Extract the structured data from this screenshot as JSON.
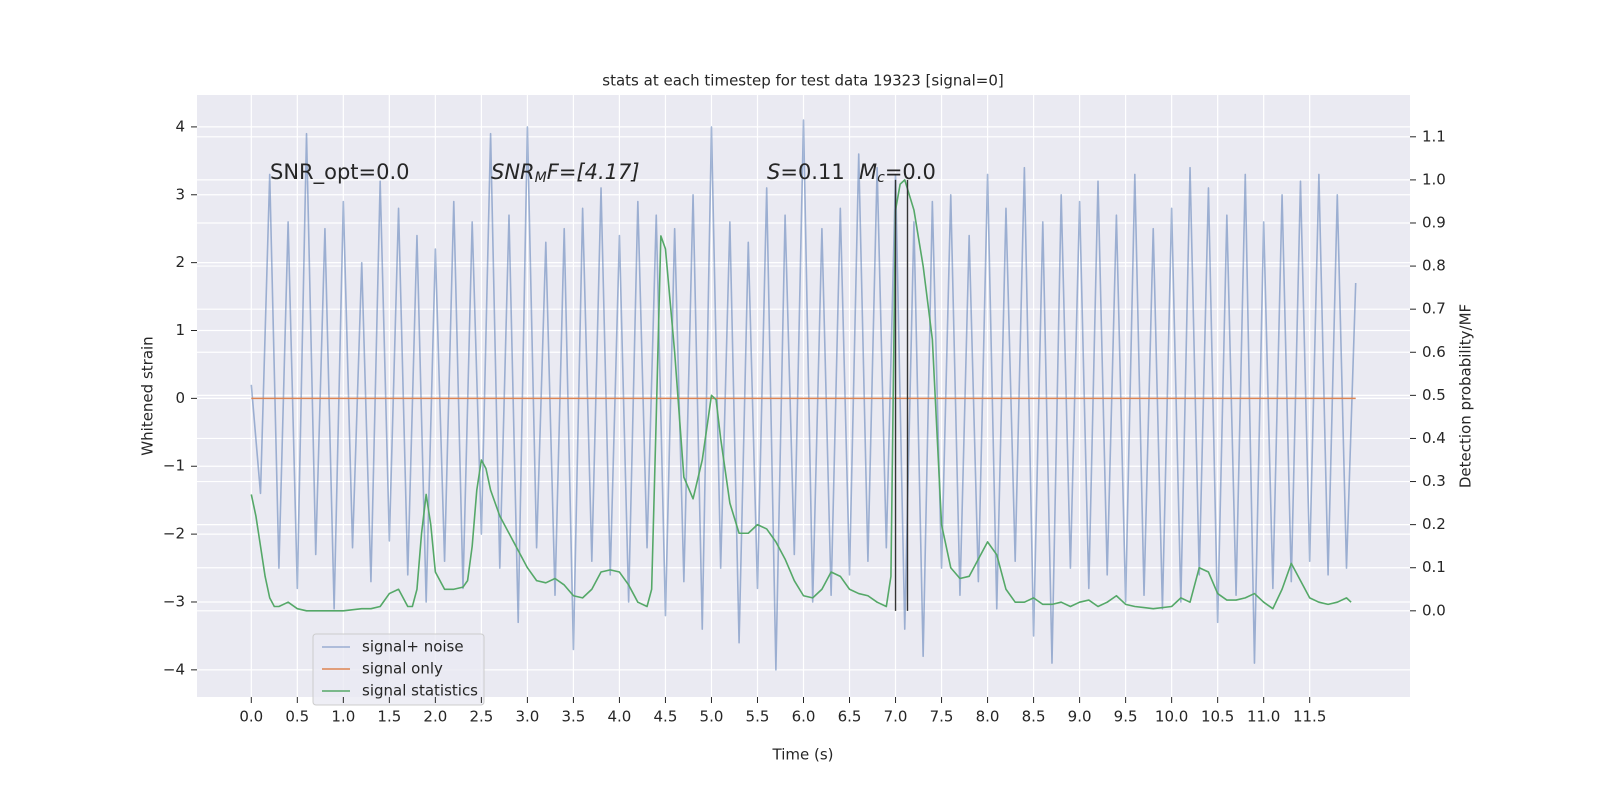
{
  "chart_data": {
    "type": "line",
    "title": "stats at each timestep for test data 19323 [signal=0]",
    "x_label": "Time (s)",
    "y_label": "Whitened strain",
    "y2_label": "Detection probability/MF",
    "annotations": [
      [
        "SNR_opt=0.0"
      ],
      [
        "SNR",
        "M",
        "F=[4.17]"
      ],
      [
        "S",
        "=0.11"
      ],
      [
        "M",
        "c",
        "=0.0"
      ]
    ],
    "xlim": [
      -0.59,
      12.59
    ],
    "xticks": [
      {
        "value": 0,
        "label": "0.0"
      },
      0.5,
      {
        "value": 1,
        "label": "1.0"
      },
      1.5,
      {
        "value": 2,
        "label": "2.0"
      },
      2.5,
      {
        "value": 3,
        "label": "3.0"
      },
      3.5,
      {
        "value": 4,
        "label": "4.0"
      },
      4.5,
      {
        "value": 5,
        "label": "5.0"
      },
      5.5,
      {
        "value": 6,
        "label": "6.0"
      },
      6.5,
      {
        "value": 7,
        "label": "7.0"
      },
      7.5,
      {
        "value": 8,
        "label": "8.0"
      },
      8.5,
      {
        "value": 9,
        "label": "9.0"
      },
      9.5,
      {
        "value": 10,
        "label": "10.0"
      },
      10.5,
      {
        "value": 11,
        "label": "11.0"
      },
      11.5
    ],
    "ylim": [
      -4.4,
      4.47
    ],
    "yticks": [
      {
        "value": -4,
        "label": "−4"
      },
      {
        "value": -3,
        "label": "−3"
      },
      {
        "value": -2,
        "label": "−2"
      },
      {
        "value": -1,
        "label": "−1"
      },
      0,
      1,
      2,
      3,
      4
    ],
    "y2lim": [
      -0.2,
      1.197
    ],
    "y2ticks": [
      {
        "value": 0,
        "label": "0.0"
      },
      0.1,
      0.2,
      0.3,
      0.4,
      0.5,
      0.6,
      0.7,
      0.8,
      0.9,
      {
        "value": 1,
        "label": "1.0"
      },
      1.1
    ],
    "grid": true,
    "legend": "lower left",
    "vlines": {
      "x": [
        7.0,
        7.13
      ],
      "ymin": 0,
      "ymax": 1,
      "color": "#333333",
      "axis": "y2"
    },
    "series": [
      {
        "name": "signal+ noise",
        "color": "#4c72b0",
        "opacity": 0.5,
        "x": [
          0,
          0.1,
          0.2,
          0.3,
          0.4,
          0.5,
          0.6,
          0.7,
          0.8,
          0.9,
          1,
          1.1,
          1.2,
          1.3,
          1.4,
          1.5,
          1.6,
          1.7,
          1.8,
          1.9,
          2,
          2.1,
          2.2,
          2.3,
          2.4,
          2.5,
          2.6,
          2.7,
          2.8,
          2.9,
          3,
          3.1,
          3.2,
          3.3,
          3.4,
          3.5,
          3.6,
          3.7,
          3.8,
          3.9,
          4,
          4.1,
          4.2,
          4.3,
          4.4,
          4.5,
          4.6,
          4.7,
          4.8,
          4.9,
          5,
          5.1,
          5.2,
          5.3,
          5.4,
          5.5,
          5.6,
          5.7,
          5.8,
          5.9,
          6,
          6.1,
          6.2,
          6.3,
          6.4,
          6.5,
          6.6,
          6.7,
          6.8,
          6.9,
          7,
          7.1,
          7.2,
          7.3,
          7.4,
          7.5,
          7.6,
          7.7,
          7.8,
          7.9,
          8,
          8.1,
          8.2,
          8.3,
          8.4,
          8.5,
          8.6,
          8.7,
          8.8,
          8.9,
          9,
          9.1,
          9.2,
          9.3,
          9.4,
          9.5,
          9.6,
          9.7,
          9.8,
          9.9,
          10,
          10.1,
          10.2,
          10.3,
          10.4,
          10.5,
          10.6,
          10.7,
          10.8,
          10.9,
          11,
          11.1,
          11.2,
          11.3,
          11.4,
          11.5,
          11.6,
          11.7,
          11.8,
          11.9,
          12
        ],
        "values": [
          0.2,
          -1.4,
          3.3,
          -2.5,
          2.6,
          -2.8,
          3.9,
          -2.3,
          2.5,
          -3.1,
          2.9,
          -2.2,
          2.0,
          -2.7,
          3.2,
          -2.1,
          2.8,
          -2.6,
          2.4,
          -3.0,
          2.2,
          -2.4,
          2.9,
          -2.8,
          2.6,
          -2.0,
          3.9,
          -2.5,
          2.7,
          -3.3,
          4.0,
          -2.2,
          2.3,
          -2.9,
          2.5,
          -3.7,
          2.8,
          -2.4,
          3.1,
          -2.6,
          2.4,
          -3.0,
          2.9,
          -2.2,
          2.7,
          -3.2,
          2.5,
          -2.7,
          3.0,
          -3.4,
          4.0,
          -2.5,
          2.6,
          -3.6,
          2.3,
          -2.8,
          3.1,
          -4.0,
          2.7,
          -2.3,
          4.1,
          -3.0,
          2.5,
          -2.9,
          2.8,
          -2.6,
          3.6,
          -2.4,
          3.4,
          -2.2,
          3.3,
          -3.4,
          2.6,
          -3.8,
          2.9,
          -2.5,
          3.0,
          -2.9,
          2.4,
          -2.7,
          3.3,
          -3.1,
          2.8,
          -2.4,
          3.4,
          -3.5,
          2.6,
          -3.9,
          3.0,
          -2.5,
          2.9,
          -2.8,
          3.2,
          -2.6,
          2.7,
          -3.0,
          3.3,
          -2.9,
          2.5,
          -3.1,
          2.8,
          -3.0,
          3.4,
          -2.6,
          3.1,
          -3.3,
          2.7,
          -2.9,
          3.3,
          -3.9,
          2.6,
          -2.8,
          3.0,
          -2.7,
          3.2,
          -2.4,
          3.3,
          -2.6,
          3.0,
          -2.5,
          1.7
        ]
      },
      {
        "name": "signal only",
        "color": "#dd8452",
        "x": [
          0,
          12
        ],
        "values": [
          0,
          0
        ]
      },
      {
        "name": "signal statistics",
        "color": "#55a868",
        "axis": "y2",
        "x": [
          0.0,
          0.05,
          0.1,
          0.15,
          0.2,
          0.25,
          0.3,
          0.4,
          0.5,
          0.6,
          0.8,
          1.0,
          1.2,
          1.3,
          1.4,
          1.5,
          1.6,
          1.7,
          1.75,
          1.8,
          1.85,
          1.9,
          1.95,
          2.0,
          2.1,
          2.2,
          2.3,
          2.35,
          2.4,
          2.45,
          2.5,
          2.55,
          2.6,
          2.7,
          2.8,
          2.9,
          3.0,
          3.1,
          3.2,
          3.3,
          3.4,
          3.5,
          3.6,
          3.7,
          3.8,
          3.9,
          4.0,
          4.1,
          4.2,
          4.3,
          4.35,
          4.4,
          4.45,
          4.5,
          4.6,
          4.7,
          4.8,
          4.9,
          5.0,
          5.05,
          5.1,
          5.2,
          5.3,
          5.4,
          5.5,
          5.6,
          5.7,
          5.8,
          5.9,
          6.0,
          6.1,
          6.2,
          6.3,
          6.4,
          6.5,
          6.6,
          6.7,
          6.8,
          6.9,
          6.95,
          7.0,
          7.05,
          7.1,
          7.2,
          7.3,
          7.4,
          7.5,
          7.6,
          7.7,
          7.8,
          7.9,
          8.0,
          8.1,
          8.2,
          8.3,
          8.4,
          8.5,
          8.6,
          8.7,
          8.8,
          8.9,
          9.0,
          9.1,
          9.2,
          9.3,
          9.4,
          9.5,
          9.6,
          9.8,
          10.0,
          10.1,
          10.2,
          10.3,
          10.4,
          10.5,
          10.6,
          10.7,
          10.8,
          10.9,
          11.0,
          11.1,
          11.2,
          11.3,
          11.4,
          11.5,
          11.6,
          11.7,
          11.8,
          11.9,
          11.95
        ],
        "values": [
          0.27,
          0.22,
          0.15,
          0.08,
          0.03,
          0.01,
          0.01,
          0.02,
          0.005,
          0.0,
          0.0,
          0.0,
          0.005,
          0.005,
          0.01,
          0.04,
          0.05,
          0.01,
          0.01,
          0.05,
          0.18,
          0.27,
          0.2,
          0.09,
          0.05,
          0.05,
          0.055,
          0.07,
          0.15,
          0.28,
          0.35,
          0.33,
          0.28,
          0.22,
          0.18,
          0.14,
          0.1,
          0.07,
          0.065,
          0.075,
          0.06,
          0.035,
          0.03,
          0.05,
          0.09,
          0.095,
          0.09,
          0.06,
          0.02,
          0.01,
          0.05,
          0.45,
          0.87,
          0.84,
          0.6,
          0.31,
          0.26,
          0.35,
          0.5,
          0.49,
          0.4,
          0.25,
          0.18,
          0.18,
          0.2,
          0.19,
          0.16,
          0.12,
          0.07,
          0.035,
          0.03,
          0.05,
          0.09,
          0.08,
          0.05,
          0.04,
          0.035,
          0.02,
          0.01,
          0.08,
          0.93,
          0.99,
          1.0,
          0.93,
          0.8,
          0.63,
          0.2,
          0.1,
          0.075,
          0.08,
          0.12,
          0.16,
          0.13,
          0.05,
          0.02,
          0.02,
          0.03,
          0.015,
          0.015,
          0.02,
          0.01,
          0.02,
          0.025,
          0.01,
          0.02,
          0.035,
          0.015,
          0.01,
          0.005,
          0.01,
          0.03,
          0.02,
          0.1,
          0.09,
          0.04,
          0.025,
          0.025,
          0.03,
          0.04,
          0.02,
          0.005,
          0.05,
          0.11,
          0.07,
          0.03,
          0.02,
          0.015,
          0.02,
          0.03,
          0.02
        ]
      }
    ]
  }
}
